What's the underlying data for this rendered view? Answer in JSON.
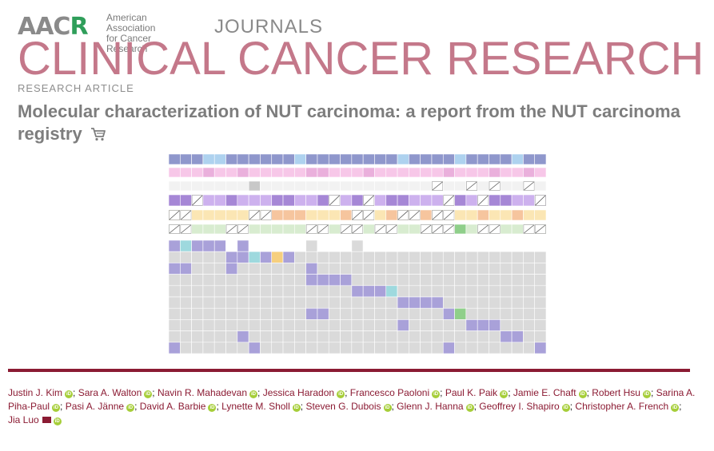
{
  "header": {
    "logo_text": "AACR",
    "org_line1": "American Association",
    "org_line2": "for Cancer Research",
    "journals_label": "JOURNALS",
    "journal_title": "CLINICAL CANCER RESEARCH"
  },
  "article": {
    "type": "RESEARCH ARTICLE",
    "title": "Molecular characterization of NUT carcinoma: a report from the NUT carcinoma registry"
  },
  "figure": {
    "icon": "oncoprint-figure",
    "colors": {
      "top_blue": "#8f97cc",
      "light_blue": "#aed2ef",
      "pink": "#f7c7e8",
      "purple": "#a687d6",
      "lilac": "#cdb1ee",
      "peach": "#f6c59e",
      "yellow": "#fbe6b4",
      "green_light": "#d8ecd0",
      "green": "#8fcf8a",
      "cyan": "#9ed9de",
      "mutation": "#a9a1d9",
      "grey": "#dadada"
    }
  },
  "authors": [
    {
      "name": "Justin J. Kim",
      "sep": ";"
    },
    {
      "name": "Sara A. Walton",
      "sep": ";"
    },
    {
      "name": "Navin R. Mahadevan",
      "sep": ";"
    },
    {
      "name": "Jessica Haradon",
      "sep": ";"
    },
    {
      "name": "Francesco Paoloni",
      "sep": ";"
    },
    {
      "name": "Paul K. Paik",
      "sep": ";"
    },
    {
      "name": "Jamie E. Chaft",
      "sep": ";"
    },
    {
      "name": "Robert Hsu",
      "sep": ";"
    },
    {
      "name": "Sarina A. Piha-Paul",
      "sep": ";"
    },
    {
      "name": "Pasi A. Jänne",
      "sep": ";"
    },
    {
      "name": "David A. Barbie",
      "sep": ";"
    },
    {
      "name": "Lynette M. Sholl",
      "sep": ";"
    },
    {
      "name": "Steven G. Dubois",
      "sep": ";"
    },
    {
      "name": "Glenn J. Hanna",
      "sep": ";"
    },
    {
      "name": "Geoffrey I. Shapiro",
      "sep": ";"
    },
    {
      "name": "Christopher A. French",
      "sep": ";"
    },
    {
      "name": "Jia Luo",
      "sep": "",
      "email": true
    }
  ]
}
